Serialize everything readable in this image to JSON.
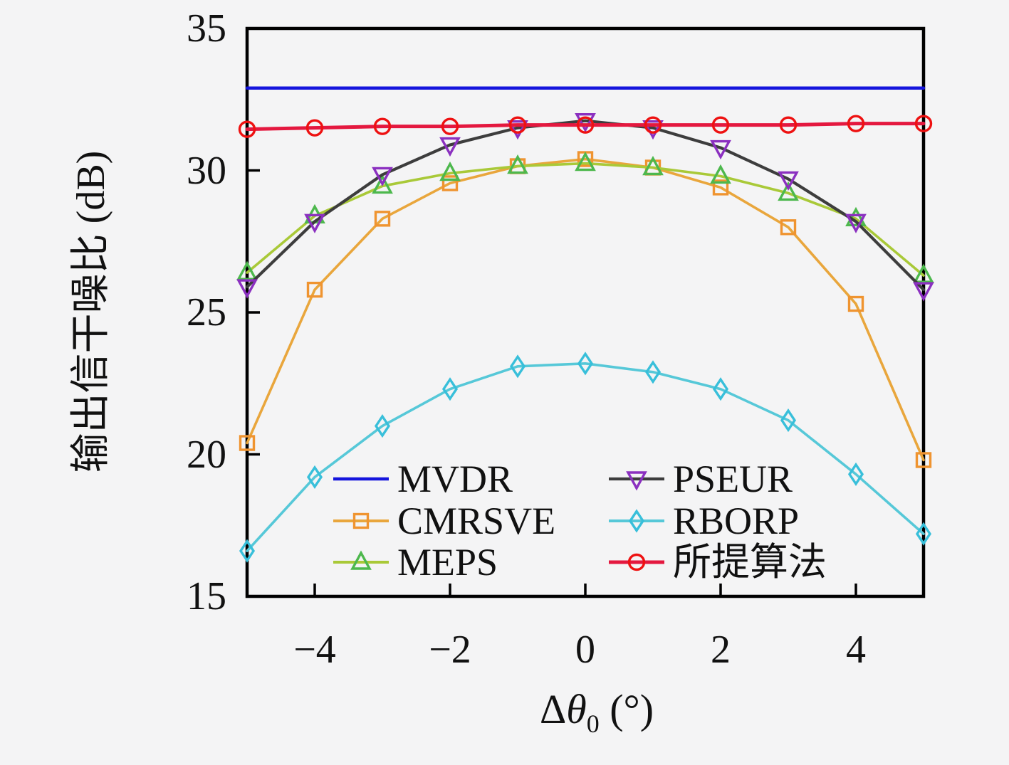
{
  "chart_data": {
    "type": "line",
    "title": "",
    "xlabel": "Δθ0 (°)",
    "xlabel_parts": {
      "delta": "Δ",
      "theta": "θ",
      "sub": "0",
      "unit": " (°)"
    },
    "ylabel": "输出信干噪比 (dB)",
    "xlim": [
      -5,
      5
    ],
    "ylim": [
      15,
      35
    ],
    "grid": false,
    "background": "#f4f4f5",
    "axis_color": "#000000",
    "x_tick_values": [
      -4,
      -2,
      0,
      2,
      4
    ],
    "x_tick_labels": [
      "−4",
      "−2",
      "0",
      "2",
      "4"
    ],
    "y_tick_values": [
      35,
      30,
      25,
      20,
      15
    ],
    "y_tick_labels": [
      "35",
      "30",
      "25",
      "20",
      "15"
    ],
    "x": [
      -5,
      -4,
      -3,
      -2,
      -1,
      0,
      1,
      2,
      3,
      4,
      5
    ],
    "series": [
      {
        "name": "MVDR",
        "color": "#1414dd",
        "marker": "none",
        "marker_color": "#1414dd",
        "lw": 4.5,
        "values": [
          32.9,
          32.9,
          32.9,
          32.9,
          32.9,
          32.9,
          32.9,
          32.9,
          32.9,
          32.9,
          32.9
        ]
      },
      {
        "name": "CMRSVE",
        "color": "#e9a63c",
        "marker": "square",
        "marker_color": "#ef9430",
        "lw": 3.6,
        "values": [
          20.4,
          25.8,
          28.3,
          29.55,
          30.15,
          30.4,
          30.1,
          29.4,
          28.0,
          25.3,
          19.8
        ]
      },
      {
        "name": "MEPS",
        "color": "#a9c938",
        "marker": "triangle-up",
        "marker_color": "#4db84d",
        "lw": 3.6,
        "values": [
          26.4,
          28.4,
          29.45,
          29.9,
          30.15,
          30.25,
          30.1,
          29.8,
          29.2,
          28.3,
          26.3
        ]
      },
      {
        "name": "PSEUR",
        "color": "#3d3d3d",
        "marker": "triangle-down",
        "marker_color": "#8b30c0",
        "lw": 4.2,
        "values": [
          25.9,
          28.2,
          29.85,
          30.9,
          31.5,
          31.75,
          31.5,
          30.8,
          29.7,
          28.2,
          25.8
        ]
      },
      {
        "name": "RBORP",
        "color": "#56c8d8",
        "marker": "diamond",
        "marker_color": "#38bfda",
        "lw": 3.6,
        "values": [
          16.6,
          19.2,
          21.0,
          22.3,
          23.1,
          23.2,
          22.9,
          22.3,
          21.2,
          19.3,
          17.2
        ]
      },
      {
        "name": "所提算法",
        "color": "#e4183f",
        "marker": "circle",
        "marker_color": "#ee1111",
        "lw": 5,
        "values": [
          31.45,
          31.5,
          31.55,
          31.55,
          31.6,
          31.6,
          31.6,
          31.6,
          31.6,
          31.65,
          31.65
        ]
      }
    ],
    "legend": {
      "position": "inside-bottom",
      "columns": [
        {
          "items": [
            0,
            1,
            2
          ]
        },
        {
          "items": [
            3,
            4,
            5
          ]
        }
      ]
    }
  }
}
